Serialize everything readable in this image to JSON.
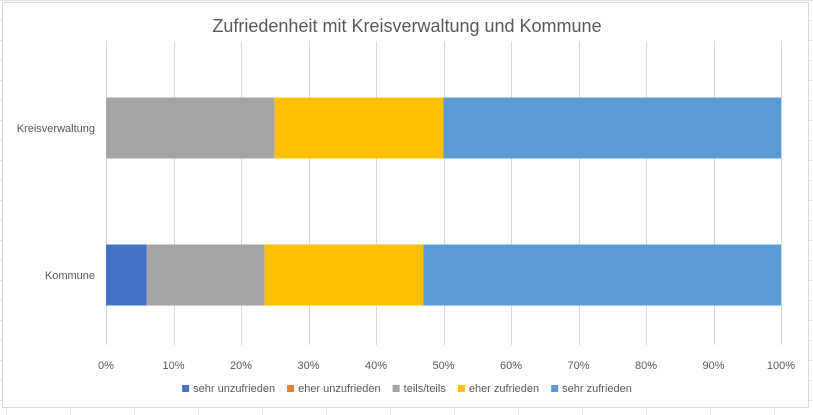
{
  "chart_data": {
    "type": "bar",
    "orientation": "horizontal",
    "stacked": "percent",
    "title": "Zufriedenheit mit Kreisverwaltung und Kommune",
    "categories": [
      "Kreisverwaltung",
      "Kommune"
    ],
    "series": [
      {
        "name": "sehr unzufrieden",
        "color": "#4472C4",
        "values": [
          0,
          6
        ]
      },
      {
        "name": "eher unzufrieden",
        "color": "#ED7D31",
        "values": [
          0,
          0
        ]
      },
      {
        "name": "teils/teils",
        "color": "#A5A5A5",
        "values": [
          25,
          17.5
        ]
      },
      {
        "name": "eher zufrieden",
        "color": "#FFC000",
        "values": [
          25,
          23.5
        ]
      },
      {
        "name": "sehr zufrieden",
        "color": "#5B9BD5",
        "values": [
          50,
          53
        ]
      }
    ],
    "xlim": [
      0,
      100
    ],
    "xticks": [
      "0%",
      "10%",
      "20%",
      "30%",
      "40%",
      "50%",
      "60%",
      "70%",
      "80%",
      "90%",
      "100%"
    ],
    "grid": true,
    "legend_position": "bottom"
  }
}
